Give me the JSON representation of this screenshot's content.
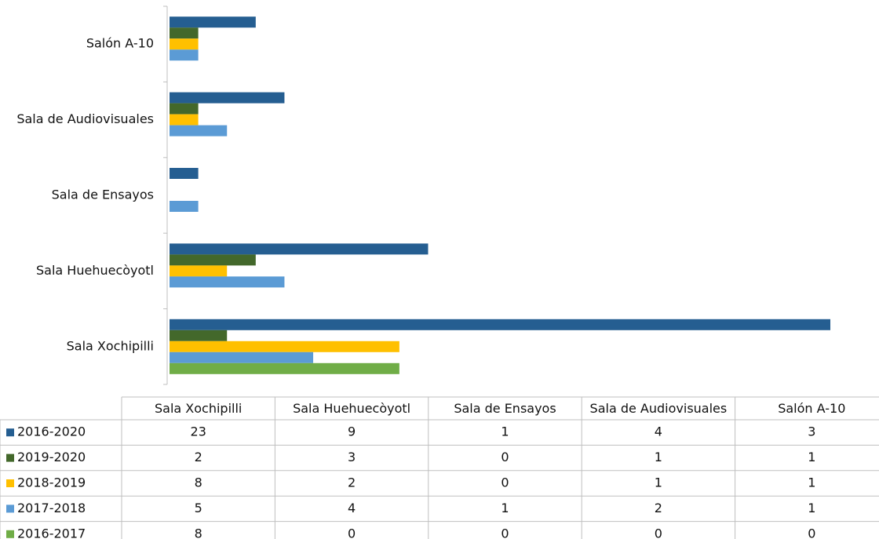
{
  "chart_data": {
    "type": "bar",
    "orientation": "horizontal",
    "categories": [
      "Sala Xochipilli",
      "Sala Huehuecòyotl",
      "Sala de Ensayos",
      "Sala de Audiovisuales",
      "Salón A-10"
    ],
    "series": [
      {
        "name": "2016-2020",
        "color": "#255e91",
        "values": [
          23,
          9,
          1,
          4,
          3
        ]
      },
      {
        "name": "2019-2020",
        "color": "#43682b",
        "values": [
          2,
          3,
          0,
          1,
          1
        ]
      },
      {
        "name": "2018-2019",
        "color": "#ffc000",
        "values": [
          8,
          2,
          0,
          1,
          1
        ]
      },
      {
        "name": "2017-2018",
        "color": "#5b9bd5",
        "values": [
          5,
          4,
          1,
          2,
          1
        ]
      },
      {
        "name": "2016-2017",
        "color": "#70ad47",
        "values": [
          8,
          0,
          0,
          0,
          0
        ]
      }
    ]
  }
}
